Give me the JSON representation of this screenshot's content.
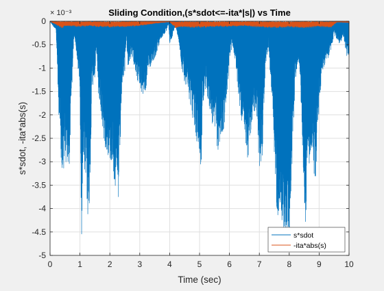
{
  "figure": {
    "background": "#f0f0f0",
    "axes_background": "#ffffff"
  },
  "chart_data": {
    "type": "line",
    "title": "Sliding Condition,(s*sdot<=-ita*|s|) vs Time",
    "xlabel": "Time (sec)",
    "ylabel": "s*sdot, -ita*abs(s)",
    "exponent_label": "× 10⁻³",
    "xlim": [
      0,
      10
    ],
    "ylim": [
      -5,
      0
    ],
    "y_scale_exponent": -3,
    "grid": true,
    "legend_position": "bottom-right",
    "x_ticks": [
      0,
      1,
      2,
      3,
      4,
      5,
      6,
      7,
      8,
      9,
      10
    ],
    "x_tick_labels": [
      "0",
      "1",
      "2",
      "3",
      "4",
      "5",
      "6",
      "7",
      "8",
      "9",
      "10"
    ],
    "y_ticks": [
      0,
      -0.5,
      -1,
      -1.5,
      -2,
      -2.5,
      -3,
      -3.5,
      -4,
      -4.5,
      -5
    ],
    "y_tick_labels": [
      "0",
      "-0.5",
      "-1",
      "-1.5",
      "-2",
      "-2.5",
      "-3",
      "-3.5",
      "-4",
      "-4.5",
      "-5"
    ],
    "series": [
      {
        "name": "s*sdot",
        "color": "#0072bd",
        "style": "dense oscillation between 0 and envelope",
        "envelope": {
          "x": [
            0,
            0.2,
            0.32,
            0.4,
            0.45,
            0.5,
            0.6,
            0.65,
            0.7,
            0.75,
            0.8,
            0.9,
            1.0,
            1.05,
            1.1,
            1.2,
            1.3,
            1.4,
            1.45,
            1.5,
            1.55,
            1.6,
            1.7,
            1.8,
            1.9,
            2.0,
            2.1,
            2.2,
            2.3,
            2.4,
            2.5,
            2.55,
            2.6,
            2.7,
            2.8,
            2.9,
            3.0,
            3.1,
            3.2,
            3.3,
            3.4,
            3.5,
            3.6,
            3.7,
            3.8,
            3.9,
            3.96,
            4.0,
            4.1,
            4.2,
            4.3,
            4.4,
            4.5,
            4.6,
            4.7,
            4.8,
            4.9,
            5.0,
            5.05,
            5.1,
            5.2,
            5.3,
            5.4,
            5.5,
            5.6,
            5.7,
            5.8,
            5.9,
            6.0,
            6.1,
            6.2,
            6.3,
            6.4,
            6.5,
            6.6,
            6.7,
            6.8,
            6.9,
            7.0,
            7.05,
            7.1,
            7.2,
            7.3,
            7.4,
            7.5,
            7.6,
            7.7,
            7.8,
            7.9,
            8.0,
            8.1,
            8.2,
            8.3,
            8.4,
            8.5,
            8.55,
            8.6,
            8.7,
            8.8,
            8.9,
            9.0,
            9.1,
            9.2,
            9.3,
            9.4,
            9.5,
            9.6,
            9.7,
            9.8,
            9.9,
            10.0
          ],
          "y": [
            0,
            -0.2,
            -2.5,
            -3.6,
            -3.2,
            -3.0,
            -3.3,
            -3.1,
            -1.8,
            -1.2,
            -0.3,
            -0.8,
            -1.4,
            -4.75,
            -3.2,
            -3.5,
            -4.7,
            -1.5,
            -1.3,
            -1.2,
            -0.6,
            -1.5,
            -2.0,
            -2.6,
            -2.8,
            -3.0,
            -3.1,
            -3.8,
            -3.95,
            -1.5,
            -1.1,
            -0.3,
            -1.0,
            -0.8,
            -0.9,
            -1.2,
            -1.5,
            -1.6,
            -1.5,
            -1.1,
            -0.9,
            -0.8,
            -0.6,
            -0.4,
            -0.3,
            -0.2,
            -0.05,
            -0.5,
            -0.3,
            -0.1,
            -0.4,
            -1.0,
            -1.3,
            -1.5,
            -1.8,
            -2.2,
            -2.6,
            -2.9,
            -3.4,
            -1.9,
            -1.5,
            -1.7,
            -2.2,
            -2.3,
            -2.8,
            -2.6,
            -2.4,
            -1.8,
            -0.8,
            -0.5,
            -0.9,
            -1.6,
            -2.1,
            -2.7,
            -3.0,
            -2.6,
            -2.0,
            -1.9,
            -3.25,
            -3.0,
            -2.9,
            -1.0,
            -0.5,
            -1.5,
            -3.0,
            -4.2,
            -3.9,
            -4.6,
            -4.65,
            -4.6,
            -3.0,
            -1.3,
            -0.8,
            -1.8,
            -3.8,
            -4.4,
            -3.1,
            -3.0,
            -3.2,
            -3.45,
            -1.8,
            -1.2,
            -0.9,
            -0.8,
            -0.6,
            -0.3,
            -0.4,
            -0.5,
            -0.3,
            -0.7,
            -0.9
          ]
        }
      },
      {
        "name": "-ita*abs(s)",
        "color": "#d95319",
        "style": "dense oscillation near zero",
        "envelope": {
          "x": [
            0,
            0.4,
            0.5,
            1.0,
            1.3,
            1.6,
            2.0,
            2.5,
            3.0,
            3.5,
            3.9,
            4.0,
            4.2,
            4.4,
            4.6,
            5.0,
            5.5,
            6.0,
            6.5,
            7.0,
            7.5,
            7.8,
            8.0,
            8.5,
            9.0,
            9.4,
            9.6,
            10.0
          ],
          "y": [
            0,
            -0.15,
            -0.1,
            -0.12,
            -0.1,
            -0.12,
            -0.13,
            -0.12,
            -0.1,
            -0.05,
            -0.02,
            -0.02,
            -0.15,
            -0.12,
            -0.13,
            -0.14,
            -0.12,
            -0.12,
            -0.1,
            -0.13,
            -0.14,
            -0.14,
            -0.13,
            -0.14,
            -0.12,
            -0.13,
            -0.02,
            -0.03
          ]
        }
      }
    ]
  }
}
